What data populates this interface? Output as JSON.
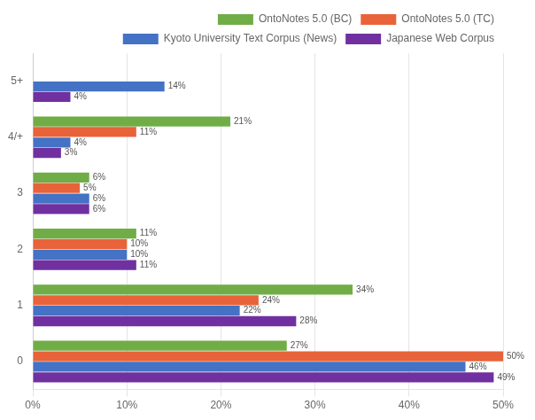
{
  "chart_data": {
    "type": "bar",
    "orientation": "horizontal",
    "categories": [
      "0",
      "1",
      "2",
      "3",
      "4/+",
      "5+"
    ],
    "series": [
      {
        "name": "OntoNotes 5.0 (BC)",
        "color": "#70AD47",
        "values": [
          27,
          34,
          11,
          6,
          21,
          0
        ],
        "value_labels": [
          "27%",
          "34%",
          "11%",
          "6%",
          "21%",
          null
        ]
      },
      {
        "name": "OntoNotes 5.0 (TC)",
        "color": "#E8633A",
        "values": [
          50,
          24,
          10,
          5,
          11,
          0
        ],
        "value_labels": [
          "50%",
          "24%",
          "10%",
          "5%",
          "11%",
          null
        ]
      },
      {
        "name": "Kyoto University Text Corpus (News)",
        "color": "#4472C4",
        "values": [
          46,
          22,
          10,
          6,
          4,
          14
        ],
        "value_labels": [
          "46%",
          "22%",
          "10%",
          "6%",
          "4%",
          "14%"
        ]
      },
      {
        "name": "Japanese Web Corpus",
        "color": "#7030A0",
        "values": [
          49,
          28,
          11,
          6,
          3,
          4
        ],
        "value_labels": [
          "49%",
          "28%",
          "11%",
          "6%",
          "3%",
          "4%"
        ]
      }
    ],
    "xlim": [
      0,
      50
    ],
    "xticks": [
      {
        "value": 0,
        "label": "0%"
      },
      {
        "value": 10,
        "label": "10%"
      },
      {
        "value": 20,
        "label": "20%"
      },
      {
        "value": 30,
        "label": "30%"
      },
      {
        "value": 40,
        "label": "40%"
      },
      {
        "value": 50,
        "label": "50%"
      }
    ],
    "grid": true,
    "legend": "upper right",
    "data_labels": true
  }
}
